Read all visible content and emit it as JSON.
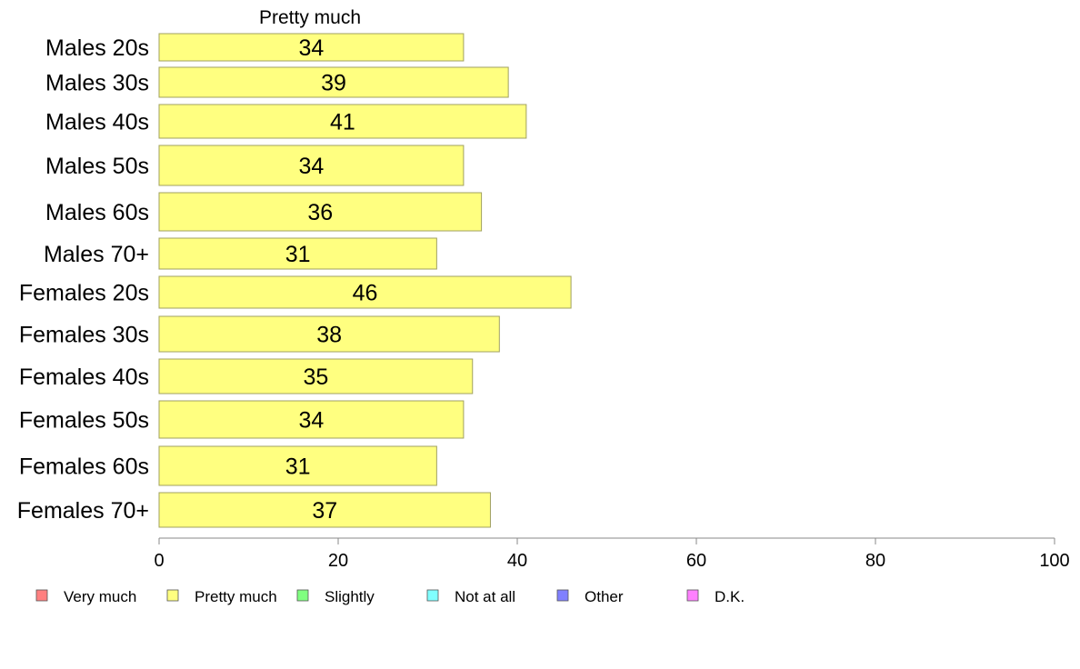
{
  "chart_data": {
    "type": "bar",
    "orientation": "horizontal",
    "title": "Pretty much",
    "categories": [
      "Males 20s",
      "Males 30s",
      "Males 40s",
      "Males 50s",
      "Males 60s",
      "Males 70+",
      "Females 20s",
      "Females 30s",
      "Females 40s",
      "Females 50s",
      "Females 60s",
      "Females 70+"
    ],
    "series": [
      {
        "name": "Pretty much",
        "values": [
          34,
          39,
          41,
          34,
          36,
          31,
          46,
          38,
          35,
          34,
          31,
          37
        ]
      }
    ],
    "value_labels": [
      "34",
      "39",
      "41",
      "34",
      "36",
      "31",
      "46",
      "38",
      "35",
      "34",
      "31",
      "37"
    ],
    "xlim": [
      0,
      100
    ],
    "x_ticks": [
      0,
      20,
      40,
      60,
      80,
      100
    ],
    "x_tick_labels": [
      "0",
      "20",
      "40",
      "60",
      "80",
      "100"
    ],
    "grid": false,
    "legend_position": "bottom",
    "legend": [
      {
        "label": "Very much",
        "color": "#ff8080"
      },
      {
        "label": "Pretty much",
        "color": "#ffff80"
      },
      {
        "label": "Slightly",
        "color": "#80ff80"
      },
      {
        "label": "Not at all",
        "color": "#80ffff"
      },
      {
        "label": "Other",
        "color": "#8080ff"
      },
      {
        "label": "D.K.",
        "color": "#ff80ff"
      }
    ],
    "bar_color": "#ffff80",
    "bar_border_color": "#a0a060"
  }
}
